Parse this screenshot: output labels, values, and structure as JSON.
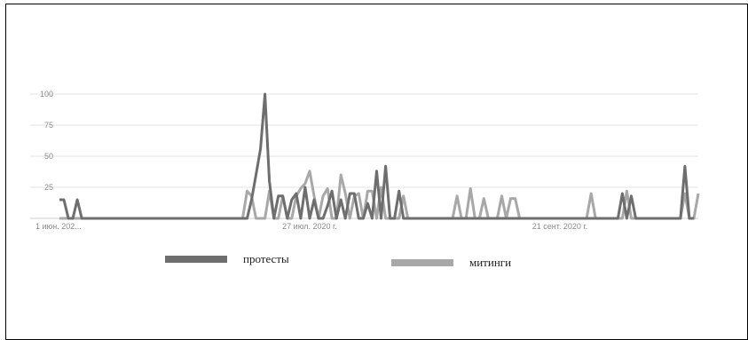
{
  "chart_data": {
    "type": "line",
    "title": "",
    "xlabel": "",
    "ylabel": "",
    "ylim": [
      0,
      100
    ],
    "yticks": [
      25,
      50,
      75,
      100
    ],
    "grid": true,
    "x_tick_labels": [
      "1 июн. 202...",
      "27 июл. 2020 г.",
      "21 сент. 2020 г."
    ],
    "x_tick_days": [
      1,
      57,
      113
    ],
    "x_range_days": [
      1,
      143
    ],
    "legend_position": "bottom",
    "series": [
      {
        "name": "протесты",
        "color": "#6e6e6e",
        "points": [
          [
            1,
            15
          ],
          [
            2,
            15
          ],
          [
            3,
            0
          ],
          [
            4,
            0
          ],
          [
            5,
            15
          ],
          [
            6,
            0
          ],
          [
            43,
            0
          ],
          [
            44,
            15
          ],
          [
            45,
            35
          ],
          [
            46,
            56
          ],
          [
            47,
            100
          ],
          [
            48,
            30
          ],
          [
            49,
            0
          ],
          [
            50,
            18
          ],
          [
            51,
            18
          ],
          [
            52,
            0
          ],
          [
            53,
            15
          ],
          [
            54,
            20
          ],
          [
            55,
            0
          ],
          [
            56,
            25
          ],
          [
            57,
            0
          ],
          [
            58,
            15
          ],
          [
            59,
            0
          ],
          [
            60,
            0
          ],
          [
            61,
            10
          ],
          [
            62,
            22
          ],
          [
            63,
            0
          ],
          [
            64,
            15
          ],
          [
            65,
            0
          ],
          [
            66,
            20
          ],
          [
            67,
            20
          ],
          [
            68,
            0
          ],
          [
            69,
            0
          ],
          [
            70,
            12
          ],
          [
            71,
            0
          ],
          [
            72,
            38
          ],
          [
            73,
            0
          ],
          [
            74,
            42
          ],
          [
            75,
            0
          ],
          [
            76,
            0
          ],
          [
            77,
            22
          ],
          [
            78,
            0
          ],
          [
            126,
            0
          ],
          [
            127,
            20
          ],
          [
            128,
            0
          ],
          [
            129,
            18
          ],
          [
            130,
            0
          ],
          [
            140,
            0
          ],
          [
            141,
            42
          ],
          [
            142,
            0
          ],
          [
            143,
            0
          ]
        ]
      },
      {
        "name": "митинги",
        "color": "#a8a8a8",
        "points": [
          [
            1,
            0
          ],
          [
            42,
            0
          ],
          [
            43,
            22
          ],
          [
            44,
            18
          ],
          [
            45,
            0
          ],
          [
            46,
            0
          ],
          [
            47,
            0
          ],
          [
            48,
            22
          ],
          [
            49,
            0
          ],
          [
            50,
            0
          ],
          [
            51,
            18
          ],
          [
            52,
            0
          ],
          [
            53,
            0
          ],
          [
            54,
            18
          ],
          [
            55,
            24
          ],
          [
            56,
            28
          ],
          [
            57,
            38
          ],
          [
            58,
            18
          ],
          [
            59,
            0
          ],
          [
            60,
            18
          ],
          [
            61,
            24
          ],
          [
            62,
            0
          ],
          [
            63,
            0
          ],
          [
            64,
            35
          ],
          [
            65,
            20
          ],
          [
            66,
            0
          ],
          [
            67,
            18
          ],
          [
            68,
            20
          ],
          [
            69,
            0
          ],
          [
            70,
            22
          ],
          [
            71,
            22
          ],
          [
            72,
            0
          ],
          [
            73,
            25
          ],
          [
            74,
            0
          ],
          [
            75,
            0
          ],
          [
            76,
            0
          ],
          [
            77,
            0
          ],
          [
            78,
            18
          ],
          [
            79,
            0
          ],
          [
            89,
            0
          ],
          [
            90,
            18
          ],
          [
            91,
            0
          ],
          [
            92,
            0
          ],
          [
            93,
            24
          ],
          [
            94,
            0
          ],
          [
            95,
            0
          ],
          [
            96,
            16
          ],
          [
            97,
            0
          ],
          [
            98,
            0
          ],
          [
            99,
            0
          ],
          [
            100,
            18
          ],
          [
            101,
            0
          ],
          [
            102,
            16
          ],
          [
            103,
            16
          ],
          [
            104,
            0
          ],
          [
            119,
            0
          ],
          [
            120,
            20
          ],
          [
            121,
            0
          ],
          [
            126,
            0
          ],
          [
            127,
            0
          ],
          [
            128,
            22
          ],
          [
            129,
            0
          ],
          [
            140,
            0
          ],
          [
            141,
            20
          ],
          [
            142,
            0
          ],
          [
            143,
            0
          ],
          [
            144,
            20
          ]
        ]
      }
    ]
  }
}
